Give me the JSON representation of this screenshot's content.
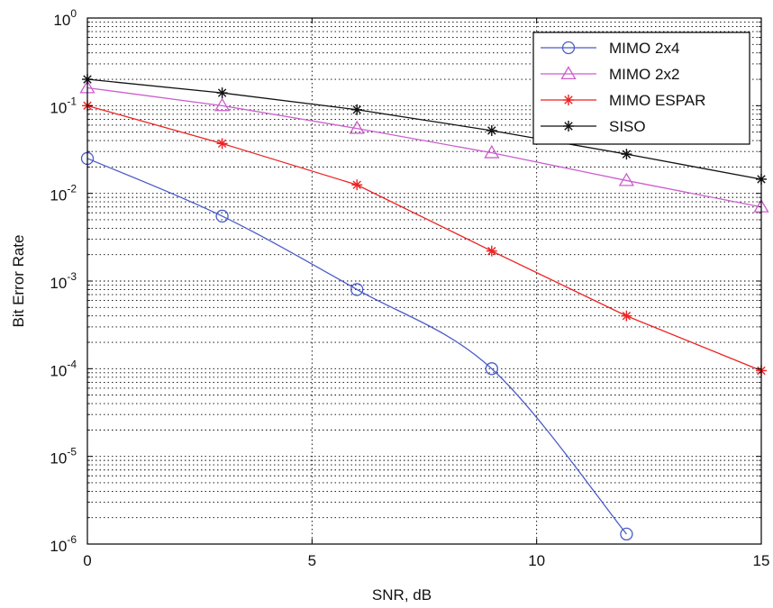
{
  "chart_data": {
    "type": "line",
    "title": "",
    "xlabel": "SNR, dB",
    "ylabel": "Bit Error Rate",
    "xlim": [
      0,
      15
    ],
    "ylim": [
      1e-06,
      1
    ],
    "y_scale": "log",
    "grid": true,
    "grid_style": "dotted",
    "legend_position": "top-right",
    "x_ticks": [
      0,
      5,
      10,
      15
    ],
    "x_tick_labels": [
      "0",
      "5",
      "10",
      "15"
    ],
    "y_ticks": [
      1e-06,
      1e-05,
      0.0001,
      0.001,
      0.01,
      0.1,
      1
    ],
    "y_tick_labels": [
      {
        "base": "10",
        "exp": "-6"
      },
      {
        "base": "10",
        "exp": "-5"
      },
      {
        "base": "10",
        "exp": "-4"
      },
      {
        "base": "10",
        "exp": "-3"
      },
      {
        "base": "10",
        "exp": "-2"
      },
      {
        "base": "10",
        "exp": "-1"
      },
      {
        "base": "10",
        "exp": "0"
      }
    ],
    "series": [
      {
        "name": "MIMO 2x4",
        "color": "#4a5cc8",
        "marker": "circle",
        "x": [
          0,
          3,
          6,
          9,
          12
        ],
        "y": [
          0.025,
          0.0055,
          0.0008,
          0.0001,
          1.3e-06
        ]
      },
      {
        "name": "MIMO 2x2",
        "color": "#cc5ecc",
        "marker": "triangle",
        "x": [
          0,
          3,
          6,
          9,
          12,
          15
        ],
        "y": [
          0.16,
          0.1,
          0.055,
          0.029,
          0.014,
          0.007
        ]
      },
      {
        "name": "MIMO ESPAR",
        "color": "#ee2222",
        "marker": "star",
        "x": [
          0,
          3,
          6,
          9,
          12,
          15
        ],
        "y": [
          0.1,
          0.037,
          0.0125,
          0.0022,
          0.0004,
          9.5e-05
        ]
      },
      {
        "name": "SISO",
        "color": "#111111",
        "marker": "star",
        "x": [
          0,
          3,
          6,
          9,
          12,
          15
        ],
        "y": [
          0.2,
          0.14,
          0.09,
          0.052,
          0.028,
          0.0145
        ]
      }
    ]
  }
}
